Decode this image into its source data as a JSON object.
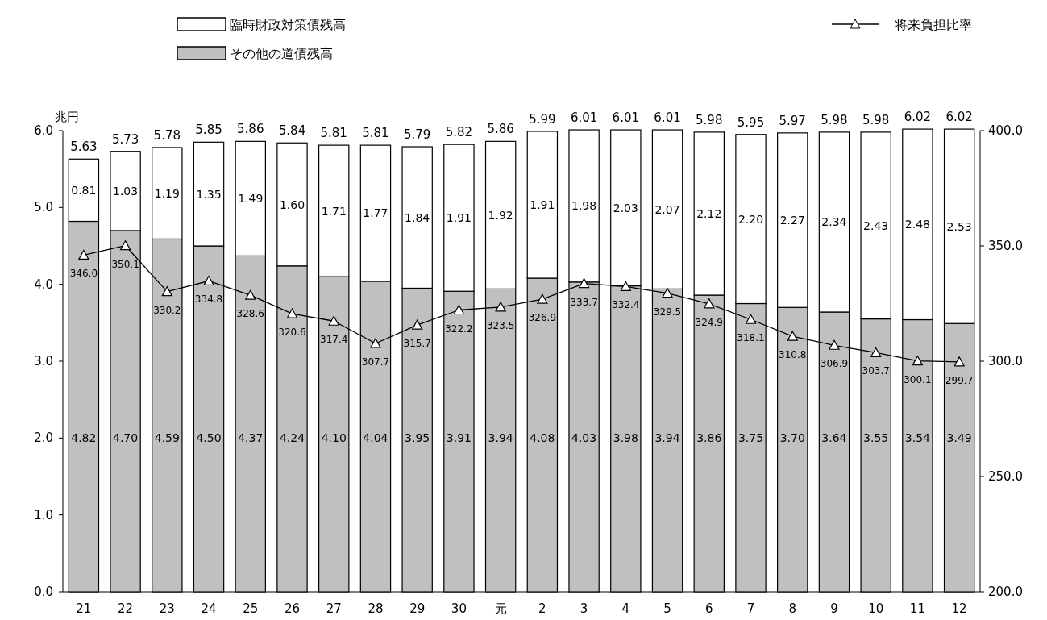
{
  "chart_data": {
    "type": "bar",
    "stacked": true,
    "ylabel": "兆円",
    "legend": "top",
    "categories": [
      "21",
      "22",
      "23",
      "24",
      "25",
      "26",
      "27",
      "28",
      "29",
      "30",
      "元",
      "2",
      "3",
      "4",
      "5",
      "6",
      "7",
      "8",
      "9",
      "10",
      "11",
      "12"
    ],
    "series": [
      {
        "name": "その他の道債残高",
        "color": "#c0c0c0",
        "values": [
          4.82,
          4.7,
          4.59,
          4.5,
          4.37,
          4.24,
          4.1,
          4.04,
          3.95,
          3.91,
          3.94,
          4.08,
          4.03,
          3.98,
          3.94,
          3.86,
          3.75,
          3.7,
          3.64,
          3.55,
          3.54,
          3.49
        ],
        "value_labels": [
          "4.82",
          "4.70",
          "4.59",
          "4.50",
          "4.37",
          "4.24",
          "4.10",
          "4.04",
          "3.95",
          "3.91",
          "3.94",
          "4.08",
          "4.03",
          "3.98",
          "3.94",
          "3.86",
          "3.75",
          "3.70",
          "3.64",
          "3.55",
          "3.54",
          "3.49"
        ]
      },
      {
        "name": "臨時財政対策債残高",
        "color": "#ffffff",
        "values": [
          0.81,
          1.03,
          1.19,
          1.35,
          1.49,
          1.6,
          1.71,
          1.77,
          1.84,
          1.91,
          1.92,
          1.91,
          1.98,
          2.03,
          2.07,
          2.12,
          2.2,
          2.27,
          2.34,
          2.43,
          2.48,
          2.53
        ],
        "value_labels": [
          "0.81",
          "1.03",
          "1.19",
          "1.35",
          "1.49",
          "1.60",
          "1.71",
          "1.77",
          "1.84",
          "1.91",
          "1.92",
          "1.91",
          "1.98",
          "2.03",
          "2.07",
          "2.12",
          "2.20",
          "2.27",
          "2.34",
          "2.43",
          "2.48",
          "2.53"
        ]
      },
      {
        "name": "将来負担比率",
        "type": "line",
        "axis": "y2",
        "color": "#000000",
        "marker": "triangle",
        "values": [
          346.0,
          350.1,
          330.2,
          334.8,
          328.6,
          320.6,
          317.4,
          307.7,
          315.7,
          322.2,
          323.5,
          326.9,
          333.7,
          332.4,
          329.5,
          324.9,
          318.1,
          310.8,
          306.9,
          303.7,
          300.1,
          299.7
        ],
        "value_labels": [
          "346.0",
          "350.1",
          "330.2",
          "334.8",
          "328.6",
          "320.6",
          "317.4",
          "307.7",
          "315.7",
          "322.2",
          "323.5",
          "326.9",
          "333.7",
          "332.4",
          "329.5",
          "324.9",
          "318.1",
          "310.8",
          "306.9",
          "303.7",
          "300.1",
          "299.7"
        ]
      }
    ],
    "totals": [
      "5.63",
      "5.73",
      "5.78",
      "5.85",
      "5.86",
      "5.84",
      "5.81",
      "5.81",
      "5.79",
      "5.82",
      "5.86",
      "5.99",
      "6.01",
      "6.01",
      "6.01",
      "5.98",
      "5.95",
      "5.97",
      "5.98",
      "5.98",
      "6.02",
      "6.02"
    ],
    "ylim": [
      0,
      6
    ],
    "yticks": [
      {
        "value": 0,
        "label": "0.0"
      },
      {
        "value": 1,
        "label": "1.0"
      },
      {
        "value": 2,
        "label": "2.0"
      },
      {
        "value": 3,
        "label": "3.0"
      },
      {
        "value": 4,
        "label": "4.0"
      },
      {
        "value": 5,
        "label": "5.0"
      },
      {
        "value": 6,
        "label": "6.0"
      }
    ],
    "y2lim": [
      200,
      400
    ],
    "y2ticks": [
      {
        "value": 200,
        "label": "200.0"
      },
      {
        "value": 250,
        "label": "250.0"
      },
      {
        "value": 300,
        "label": "300.0"
      },
      {
        "value": 350,
        "label": "350.0"
      },
      {
        "value": 400,
        "label": "400.0"
      }
    ]
  }
}
